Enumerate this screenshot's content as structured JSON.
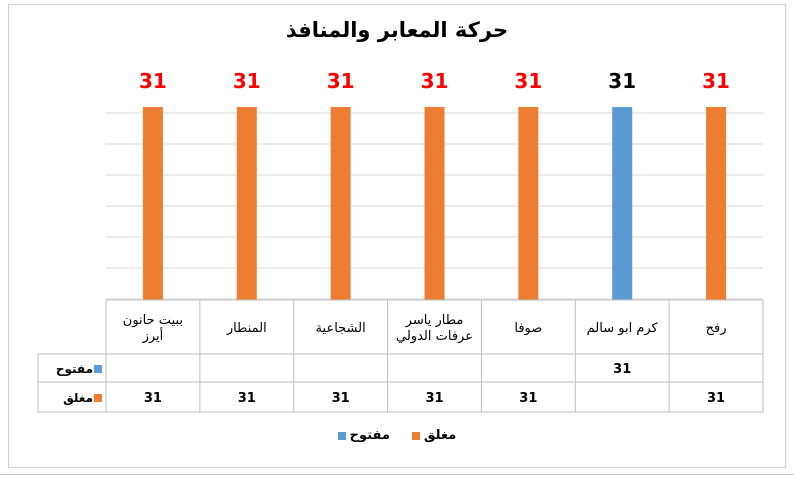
{
  "chart_data": {
    "type": "bar",
    "title": "حركة المعابر والمنافذ",
    "categories": [
      "ببيت حانون\nأيرز",
      "المنطار",
      "الشجاعية",
      "مطار ياسر\nعرفات الدولي",
      "صوفا",
      "كرم ابو سالم",
      "رفح"
    ],
    "series": [
      {
        "name": "مفتوح",
        "color": "#5b9bd5",
        "values": [
          null,
          null,
          null,
          null,
          null,
          31,
          null
        ],
        "value_labels": [
          "",
          "",
          "",
          "",
          "",
          "31",
          ""
        ]
      },
      {
        "name": "مغلق",
        "color": "#ed7d31",
        "values": [
          31,
          31,
          31,
          31,
          31,
          null,
          31
        ],
        "value_labels": [
          "31",
          "31",
          "31",
          "31",
          "31",
          "",
          "31"
        ]
      }
    ],
    "data_labels": [
      "31",
      "31",
      "31",
      "31",
      "31",
      "31",
      "31"
    ],
    "data_label_colors": [
      "#ff0000",
      "#ff0000",
      "#ff0000",
      "#ff0000",
      "#ff0000",
      "#000000",
      "#ff0000"
    ],
    "ylim": [
      0,
      31
    ],
    "grid": true,
    "legend": "bottom",
    "data_table": true
  }
}
